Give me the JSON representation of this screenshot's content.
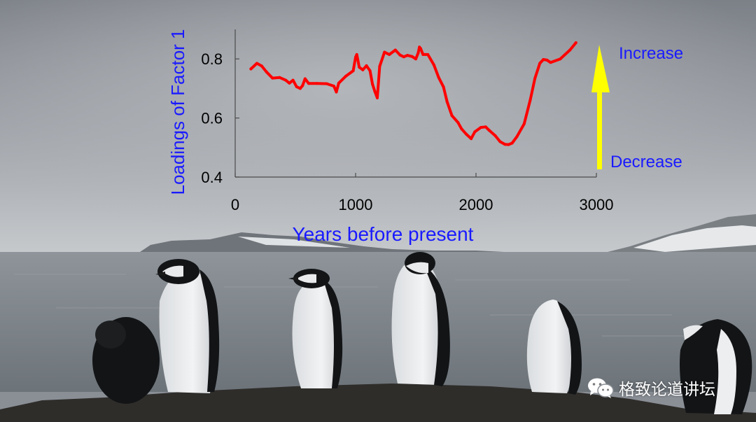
{
  "chart_data": {
    "type": "line",
    "title": "",
    "xlabel": "Years before present",
    "ylabel": "Loadings of Factor 1",
    "xlim": [
      0,
      3000
    ],
    "ylim": [
      0.4,
      0.9
    ],
    "x_ticks": [
      {
        "value": 0,
        "label": "0"
      },
      {
        "value": 1000,
        "label": "1000"
      },
      {
        "value": 2000,
        "label": "2000"
      },
      {
        "value": 3000,
        "label": "3000"
      }
    ],
    "y_ticks": [
      {
        "value": 0.4,
        "label": "0.4"
      },
      {
        "value": 0.6,
        "label": "0.6"
      },
      {
        "value": 0.8,
        "label": "0.8"
      }
    ],
    "grid": false,
    "series": [
      {
        "name": "",
        "color": "#ff0000",
        "x": [
          130,
          180,
          220,
          260,
          310,
          370,
          420,
          450,
          480,
          510,
          540,
          560,
          580,
          610,
          680,
          760,
          820,
          840,
          860,
          920,
          980,
          1000,
          1010,
          1030,
          1060,
          1090,
          1120,
          1140,
          1160,
          1180,
          1200,
          1240,
          1280,
          1330,
          1370,
          1400,
          1430,
          1470,
          1500,
          1520,
          1530,
          1540,
          1560,
          1600,
          1650,
          1690,
          1730,
          1760,
          1800,
          1850,
          1880,
          1920,
          1960,
          1990,
          2040,
          2080,
          2110,
          2160,
          2200,
          2240,
          2270,
          2300,
          2340,
          2400,
          2450,
          2490,
          2530,
          2560,
          2590,
          2620,
          2700,
          2780,
          2830
        ],
        "y": [
          0.766,
          0.785,
          0.776,
          0.756,
          0.735,
          0.737,
          0.728,
          0.718,
          0.728,
          0.706,
          0.7,
          0.71,
          0.733,
          0.717,
          0.717,
          0.716,
          0.708,
          0.688,
          0.718,
          0.742,
          0.76,
          0.806,
          0.815,
          0.772,
          0.763,
          0.777,
          0.76,
          0.715,
          0.69,
          0.668,
          0.775,
          0.823,
          0.815,
          0.83,
          0.813,
          0.807,
          0.812,
          0.808,
          0.8,
          0.82,
          0.84,
          0.835,
          0.815,
          0.815,
          0.78,
          0.737,
          0.705,
          0.655,
          0.608,
          0.585,
          0.563,
          0.545,
          0.53,
          0.553,
          0.568,
          0.57,
          0.558,
          0.54,
          0.52,
          0.511,
          0.51,
          0.515,
          0.537,
          0.58,
          0.66,
          0.735,
          0.785,
          0.798,
          0.796,
          0.788,
          0.8,
          0.83,
          0.855
        ]
      }
    ],
    "arrow": {
      "color": "#ffff00",
      "top_label": "Increase",
      "bottom_label": "Decrease",
      "label_color": "#1a1aff"
    }
  },
  "watermark": {
    "text": "格致论道讲坛",
    "icon": "wechat-icon"
  }
}
